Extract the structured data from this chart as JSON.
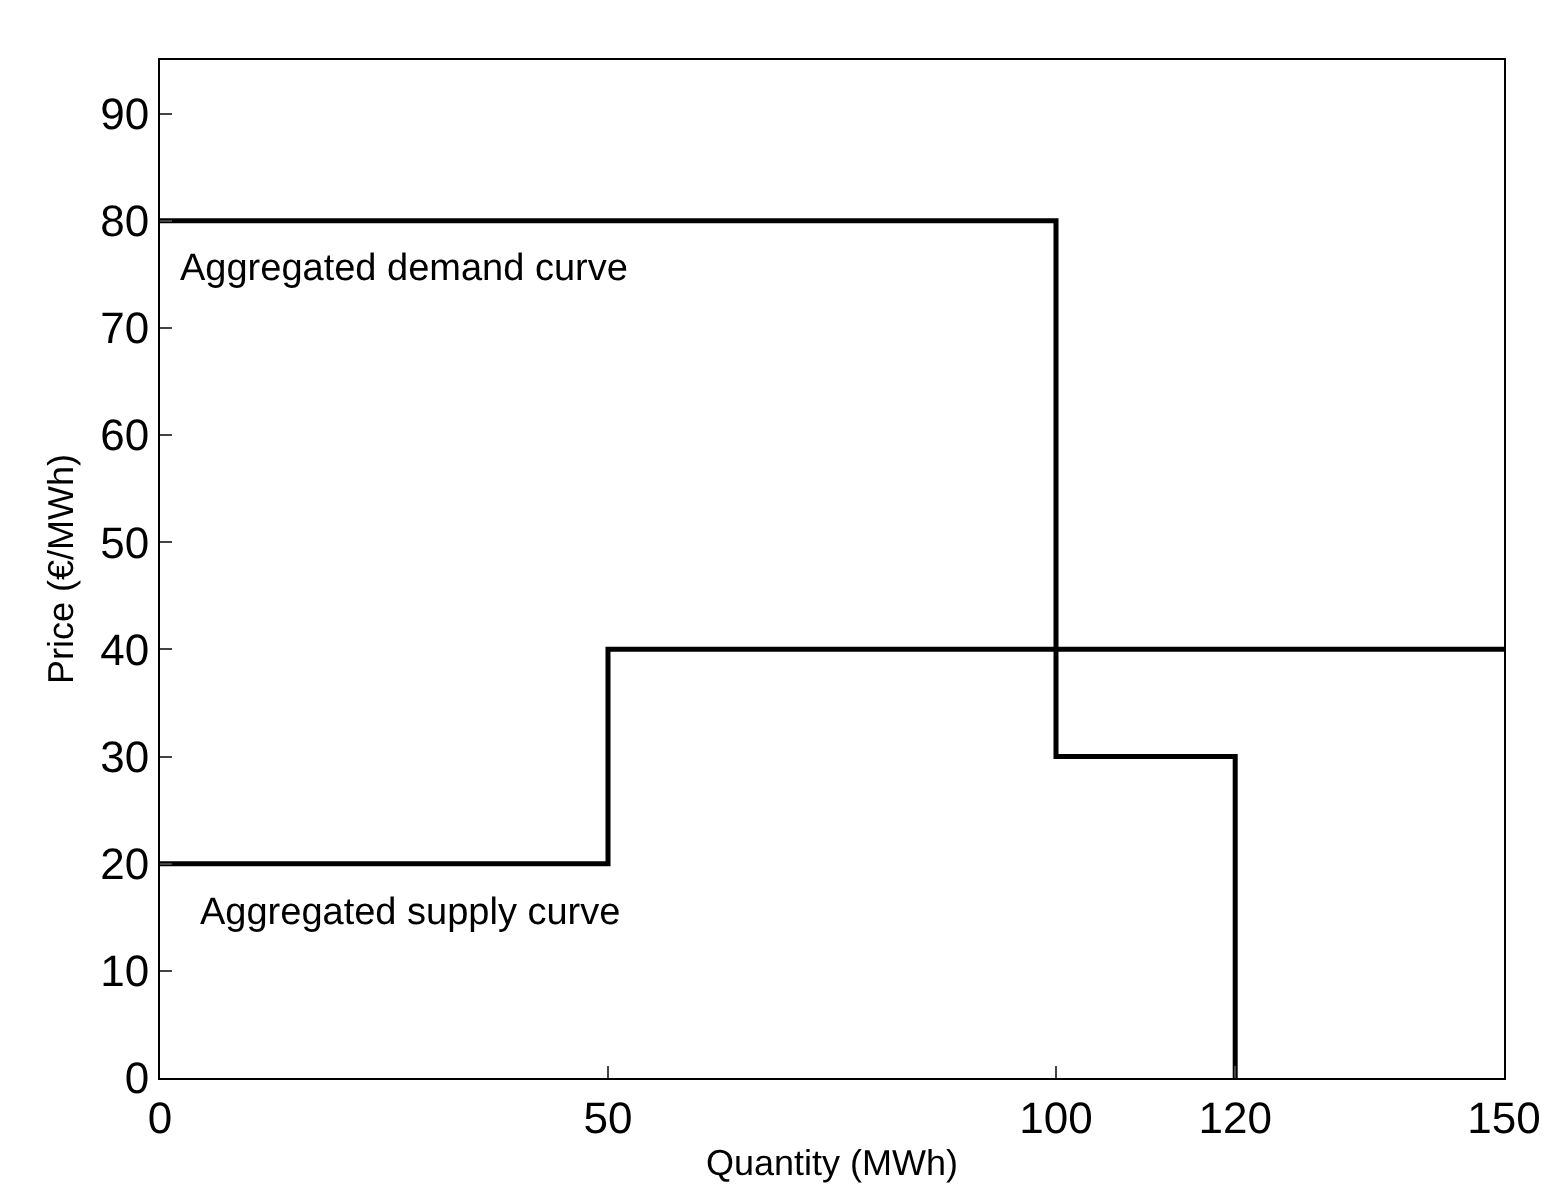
{
  "chart_data": {
    "type": "step",
    "xlabel": "Quantity (MWh)",
    "ylabel": "Price (€/MWh)",
    "xlim": [
      0,
      150
    ],
    "xticks": [
      0,
      50,
      100,
      120,
      150
    ],
    "ylim": [
      0,
      95
    ],
    "yticks": [
      0,
      10,
      20,
      30,
      40,
      50,
      60,
      70,
      80,
      90
    ],
    "legend": false,
    "series": [
      {
        "name": "Aggregated demand curve",
        "color": "#000000",
        "x": [
          0,
          100,
          120
        ],
        "values": [
          80,
          30,
          0
        ]
      },
      {
        "name": "Aggregated supply curve",
        "color": "#000000",
        "x": [
          0,
          50,
          150
        ],
        "values": [
          20,
          40,
          40
        ]
      }
    ]
  }
}
